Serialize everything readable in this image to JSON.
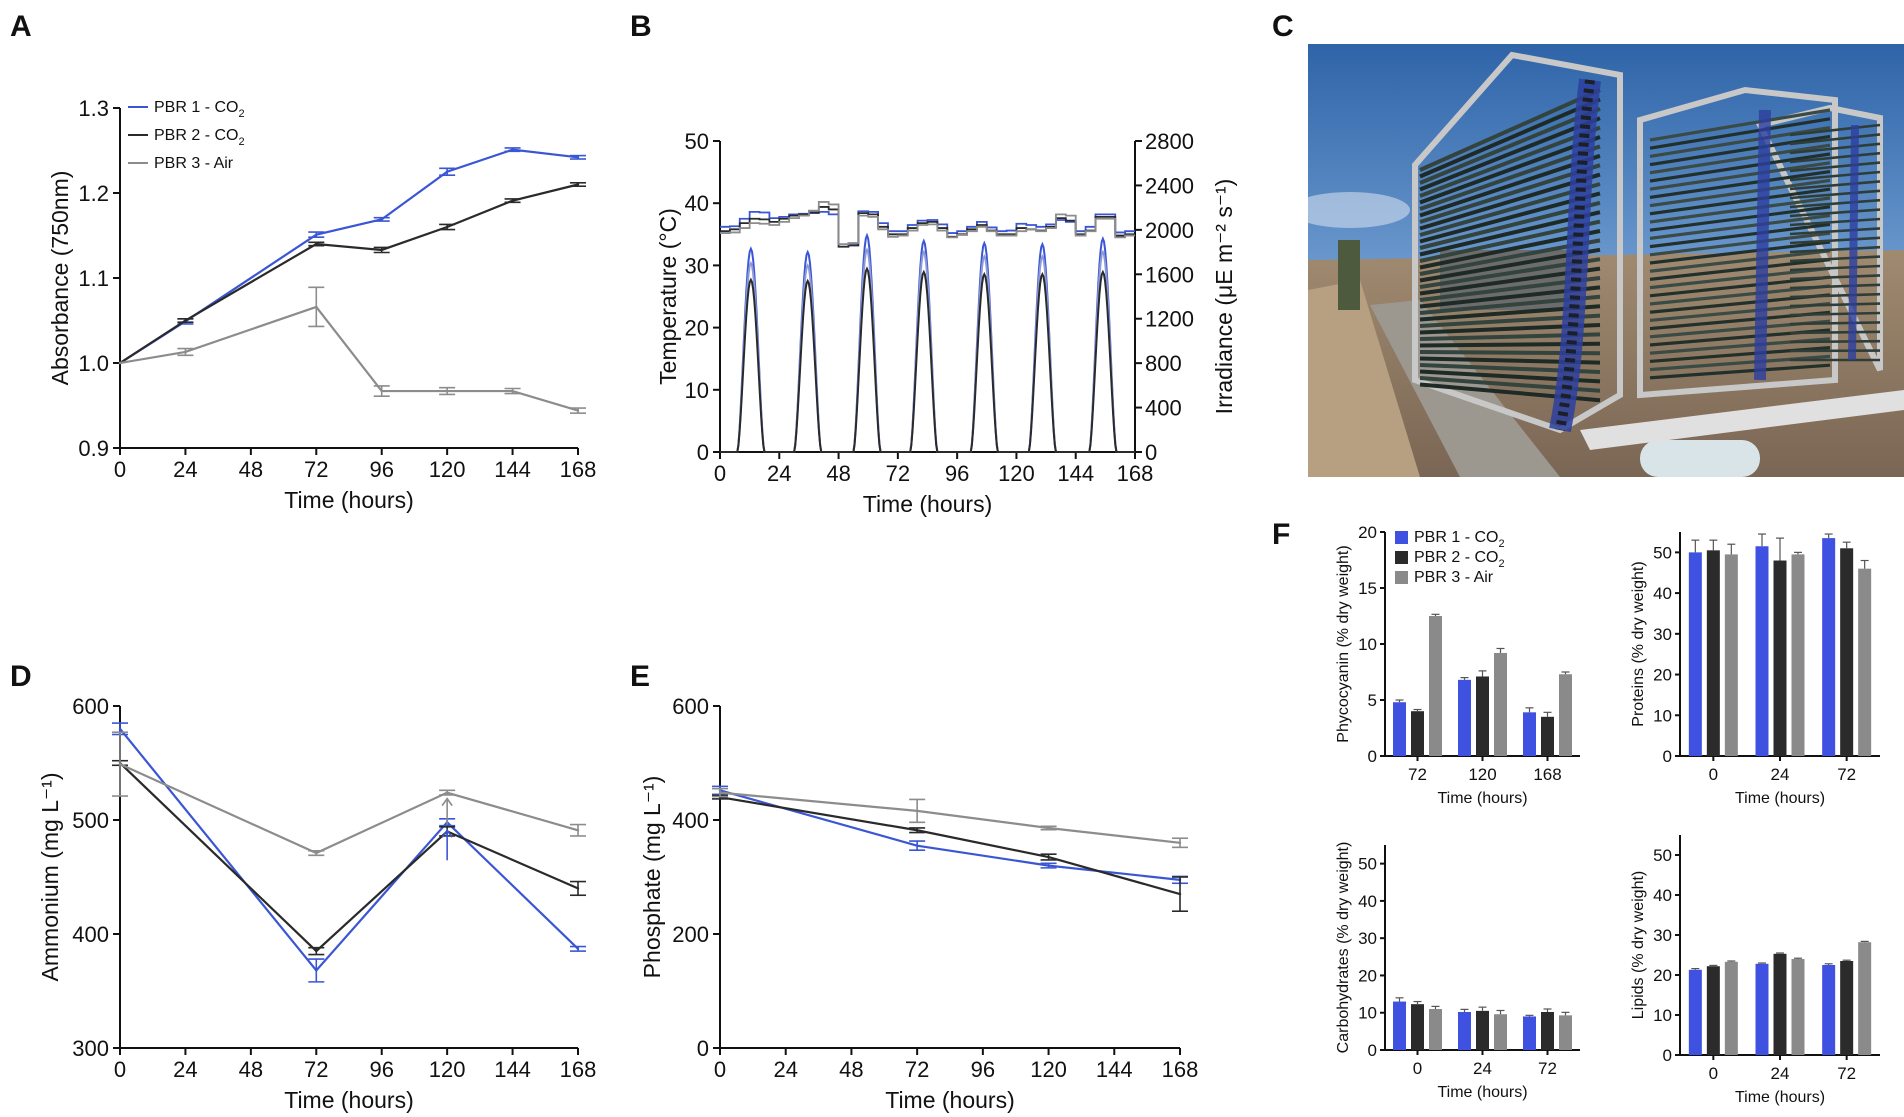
{
  "colors": {
    "pbr1": "#3a56d4",
    "pbr2": "#2a2a2a",
    "pbr3": "#8c8c8c",
    "bar1": "#3f51e0",
    "bar2": "#2b2b2b",
    "bar3": "#8a8a8a"
  },
  "panel_letters": [
    "A",
    "B",
    "C",
    "D",
    "E",
    "F"
  ],
  "photo": {
    "name": "photobioreactor-photo"
  },
  "chart_data": [
    {
      "id": "A",
      "type": "line",
      "xlabel": "Time (hours)",
      "ylabel": "Absorbance (750nm)",
      "xlim": [
        0,
        168
      ],
      "ylim": [
        0.9,
        1.3
      ],
      "xticks": [
        0,
        24,
        48,
        72,
        96,
        120,
        144,
        168
      ],
      "yticks": [
        "0.9",
        "1.0",
        "1.1",
        "1.2",
        "1.3"
      ],
      "legend": [
        {
          "label": "PBR 1 - CO",
          "sub": "2"
        },
        {
          "label": "PBR 2 - CO",
          "sub": "2"
        },
        {
          "label": "PBR 3 - Air",
          "sub": ""
        }
      ],
      "series": [
        {
          "name": "PBR 1 - CO2",
          "x": [
            0,
            24,
            72,
            96,
            120,
            144,
            168
          ],
          "y": [
            1.0,
            1.049,
            1.151,
            1.169,
            1.225,
            1.251,
            1.242
          ],
          "err": [
            0,
            0.003,
            0.003,
            0.002,
            0.004,
            0.002,
            0.002
          ]
        },
        {
          "name": "PBR 2 - CO2",
          "x": [
            0,
            24,
            72,
            96,
            120,
            144,
            168
          ],
          "y": [
            1.0,
            1.05,
            1.14,
            1.133,
            1.16,
            1.191,
            1.21
          ],
          "err": [
            0,
            0.002,
            0.002,
            0.003,
            0.003,
            0.002,
            0.002
          ]
        },
        {
          "name": "PBR 3 - Air",
          "x": [
            0,
            24,
            72,
            96,
            120,
            144,
            168
          ],
          "y": [
            1.0,
            1.013,
            1.066,
            0.967,
            0.967,
            0.967,
            0.944
          ],
          "err": [
            0,
            0.004,
            0.023,
            0.006,
            0.004,
            0.003,
            0.003
          ]
        }
      ]
    },
    {
      "id": "B",
      "type": "line",
      "xlabel": "Time (hours)",
      "ylabel": "Temperature (°C)",
      "y2label": "Irradiance (μE m⁻² s⁻¹)",
      "xlim": [
        0,
        168
      ],
      "ylim": [
        0,
        50
      ],
      "y2lim": [
        0,
        2800
      ],
      "xticks": [
        0,
        24,
        48,
        72,
        96,
        120,
        144,
        168
      ],
      "yticks": [
        0,
        10,
        20,
        30,
        40,
        50
      ],
      "y2ticks": [
        0,
        400,
        800,
        1200,
        1600,
        2000,
        2400,
        2800
      ],
      "temperature_series": [
        {
          "name": "PBR 1 - CO2",
          "x": [
            0,
            4,
            8,
            12,
            16,
            20,
            24,
            28,
            32,
            36,
            40,
            44,
            48,
            52,
            56,
            60,
            64,
            68,
            72,
            76,
            80,
            84,
            88,
            92,
            96,
            100,
            104,
            108,
            112,
            116,
            120,
            124,
            128,
            132,
            136,
            140,
            144,
            148,
            152,
            156,
            160,
            164,
            168
          ],
          "y": [
            36.2,
            36.3,
            37.5,
            38.6,
            38.5,
            37.6,
            37.8,
            38.2,
            38.3,
            38.4,
            38.6,
            38.2,
            33.4,
            33.5,
            38.7,
            38.6,
            36.8,
            35.5,
            35.5,
            36.5,
            37.2,
            37.3,
            36.6,
            35.2,
            35.5,
            36.2,
            37.0,
            36.1,
            35.5,
            35.6,
            36.7,
            36.5,
            36.2,
            36.6,
            37.3,
            37.0,
            35.5,
            36.2,
            38.2,
            38.2,
            35.3,
            35.5,
            35.5
          ]
        },
        {
          "name": "PBR 2 - CO2",
          "x": [
            0,
            4,
            8,
            12,
            16,
            20,
            24,
            28,
            32,
            36,
            40,
            44,
            48,
            52,
            56,
            60,
            64,
            68,
            72,
            76,
            80,
            84,
            88,
            92,
            96,
            100,
            104,
            108,
            112,
            116,
            120,
            124,
            128,
            132,
            136,
            140,
            144,
            148,
            152,
            156,
            160,
            164,
            168
          ],
          "y": [
            35.5,
            35.8,
            36.8,
            37.5,
            37.4,
            37.0,
            37.5,
            38.0,
            38.2,
            38.5,
            39.4,
            39.0,
            33.0,
            33.2,
            38.4,
            38.2,
            36.2,
            35.0,
            35.0,
            36.0,
            36.8,
            37.0,
            36.0,
            34.6,
            35.0,
            35.8,
            36.5,
            35.6,
            35.0,
            35.0,
            36.0,
            35.8,
            35.6,
            36.2,
            37.6,
            37.2,
            35.0,
            35.6,
            37.8,
            37.8,
            34.8,
            35.0,
            35.0
          ]
        },
        {
          "name": "PBR 3 - Air",
          "x": [
            0,
            4,
            8,
            12,
            16,
            20,
            24,
            28,
            32,
            36,
            40,
            44,
            48,
            52,
            56,
            60,
            64,
            68,
            72,
            76,
            80,
            84,
            88,
            92,
            96,
            100,
            104,
            108,
            112,
            116,
            120,
            124,
            128,
            132,
            136,
            140,
            144,
            148,
            152,
            156,
            160,
            164,
            168
          ],
          "y": [
            35.2,
            35.3,
            36.0,
            36.8,
            36.7,
            36.5,
            37.0,
            37.6,
            38.0,
            38.8,
            40.2,
            39.8,
            33.4,
            33.6,
            38.0,
            37.8,
            35.8,
            34.6,
            34.8,
            35.6,
            36.5,
            36.6,
            35.6,
            34.5,
            34.9,
            35.5,
            36.2,
            35.5,
            34.8,
            34.8,
            35.5,
            35.8,
            35.5,
            36.0,
            38.2,
            38.0,
            34.8,
            35.5,
            37.5,
            37.5,
            34.5,
            34.8,
            34.8
          ]
        }
      ],
      "irradiance_peaks": [
        {
          "name": "PBR 1 - CO2",
          "centers": [
            12.5,
            35.5,
            59.5,
            82.5,
            107,
            130.5,
            155
          ],
          "peaks": [
            1830,
            1800,
            1950,
            1900,
            1880,
            1870,
            1920
          ]
        },
        {
          "name": "PBR 3 - Air",
          "centers": [
            12.5,
            35.5,
            59.5,
            82.5,
            107,
            130.5,
            155
          ],
          "peaks": [
            1700,
            1680,
            1820,
            1800,
            1760,
            1760,
            1800
          ]
        },
        {
          "name": "PBR 2 - CO2",
          "centers": [
            12.5,
            35.5,
            59.5,
            82.5,
            107,
            130.5,
            155
          ],
          "peaks": [
            1550,
            1540,
            1650,
            1620,
            1600,
            1600,
            1620
          ]
        }
      ],
      "day_half_width_hours": 5.5
    },
    {
      "id": "D",
      "type": "line",
      "xlabel": "Time (hours)",
      "ylabel": "Ammonium (mg L⁻¹)",
      "xlim": [
        0,
        168
      ],
      "ylim": [
        300,
        600
      ],
      "xticks": [
        0,
        24,
        48,
        72,
        96,
        120,
        144,
        168
      ],
      "yticks": [
        300,
        400,
        500,
        600
      ],
      "series": [
        {
          "name": "PBR 1 - CO2",
          "x": [
            0,
            72,
            120,
            168
          ],
          "y": [
            580,
            368,
            498,
            387
          ],
          "err": [
            5,
            10,
            3,
            2
          ]
        },
        {
          "name": "PBR 2 - CO2",
          "x": [
            0,
            72,
            120,
            168
          ],
          "y": [
            550,
            385,
            490,
            440
          ],
          "err": [
            2,
            3,
            4,
            6
          ]
        },
        {
          "name": "PBR 3 - Air",
          "x": [
            0,
            72,
            120,
            168
          ],
          "y": [
            549,
            471,
            524,
            491
          ],
          "err": [
            28,
            2,
            2,
            5
          ]
        }
      ],
      "arrows": [
        {
          "x": 120,
          "series": "PBR 1 - CO2"
        },
        {
          "x": 120,
          "series": "PBR 3 - Air"
        }
      ]
    },
    {
      "id": "E",
      "type": "line",
      "xlabel": "Time (hours)",
      "ylabel": "Phosphate (mg L⁻¹)",
      "xlim": [
        0,
        168
      ],
      "ylim": [
        0,
        600
      ],
      "xticks": [
        0,
        24,
        48,
        72,
        96,
        120,
        144,
        168
      ],
      "yticks": [
        0,
        200,
        400,
        600
      ],
      "series": [
        {
          "name": "PBR 1 - CO2",
          "x": [
            0,
            72,
            120,
            168
          ],
          "y": [
            452,
            355,
            320,
            295
          ],
          "err": [
            7,
            8,
            4,
            6
          ]
        },
        {
          "name": "PBR 2 - CO2",
          "x": [
            0,
            72,
            120,
            168
          ],
          "y": [
            440,
            382,
            335,
            270
          ],
          "err": [
            3,
            4,
            5,
            30
          ]
        },
        {
          "name": "PBR 3 - Air",
          "x": [
            0,
            72,
            120,
            168
          ],
          "y": [
            448,
            416,
            386,
            360
          ],
          "err": [
            7,
            20,
            3,
            8
          ]
        }
      ]
    },
    {
      "id": "F1",
      "type": "bar",
      "xlabel": "Time (hours)",
      "ylabel": "Phycocyanin (% dry weight)",
      "categories": [
        "72",
        "120",
        "168"
      ],
      "ylim": [
        0,
        20
      ],
      "yticks": [
        0,
        5,
        10,
        15,
        20
      ],
      "legend": [
        {
          "label": "PBR 1 - CO",
          "sub": "2"
        },
        {
          "label": "PBR 2 - CO",
          "sub": "2"
        },
        {
          "label": "PBR 3 - Air",
          "sub": ""
        }
      ],
      "series": [
        {
          "name": "PBR 1 - CO2",
          "values": [
            4.8,
            6.8,
            3.9
          ],
          "err": [
            0.2,
            0.2,
            0.4
          ]
        },
        {
          "name": "PBR 2 - CO2",
          "values": [
            4.0,
            7.1,
            3.5
          ],
          "err": [
            0.15,
            0.5,
            0.4
          ]
        },
        {
          "name": "PBR 3 - Air",
          "values": [
            12.5,
            9.2,
            7.3
          ],
          "err": [
            0.15,
            0.4,
            0.2
          ]
        }
      ]
    },
    {
      "id": "F2",
      "type": "bar",
      "xlabel": "Time (hours)",
      "ylabel": "Proteins (% dry weight)",
      "categories": [
        "0",
        "24",
        "72"
      ],
      "ylim": [
        0,
        55
      ],
      "yticks": [
        0,
        10,
        20,
        30,
        40,
        50
      ],
      "series": [
        {
          "name": "PBR 1 - CO2",
          "values": [
            50,
            51.5,
            53.5
          ],
          "err": [
            3,
            3,
            1
          ]
        },
        {
          "name": "PBR 2 - CO2",
          "values": [
            50.5,
            48,
            51
          ],
          "err": [
            2.5,
            5.5,
            1.5
          ]
        },
        {
          "name": "PBR 3 - Air",
          "values": [
            49.5,
            49.5,
            46
          ],
          "err": [
            2.5,
            0.5,
            2
          ]
        }
      ]
    },
    {
      "id": "F3",
      "type": "bar",
      "xlabel": "Time (hours)",
      "ylabel": "Carbohydrates (% dry weight)",
      "categories": [
        "0",
        "24",
        "72"
      ],
      "ylim": [
        0,
        55
      ],
      "yticks": [
        0,
        10,
        20,
        30,
        40,
        50
      ],
      "series": [
        {
          "name": "PBR 1 - CO2",
          "values": [
            13,
            10.2,
            9
          ],
          "err": [
            1,
            0.7,
            0.3
          ]
        },
        {
          "name": "PBR 2 - CO2",
          "values": [
            12.3,
            10.5,
            10.2
          ],
          "err": [
            0.7,
            1,
            0.8
          ]
        },
        {
          "name": "PBR 3 - Air",
          "values": [
            11,
            9.6,
            9.3
          ],
          "err": [
            0.7,
            1,
            0.8
          ]
        }
      ]
    },
    {
      "id": "F4",
      "type": "bar",
      "xlabel": "Time (hours)",
      "ylabel": "Lipids (% dry weight)",
      "categories": [
        "0",
        "24",
        "72"
      ],
      "ylim": [
        0,
        55
      ],
      "yticks": [
        0,
        10,
        20,
        30,
        40,
        50
      ],
      "series": [
        {
          "name": "PBR 1 - CO2",
          "values": [
            21.3,
            22.8,
            22.5
          ],
          "err": [
            0.3,
            0.2,
            0.3
          ]
        },
        {
          "name": "PBR 2 - CO2",
          "values": [
            22.2,
            25.3,
            23.5
          ],
          "err": [
            0.2,
            0.2,
            0.2
          ]
        },
        {
          "name": "PBR 3 - Air",
          "values": [
            23.3,
            24,
            28.2
          ],
          "err": [
            0.2,
            0.2,
            0.2
          ]
        }
      ]
    }
  ]
}
